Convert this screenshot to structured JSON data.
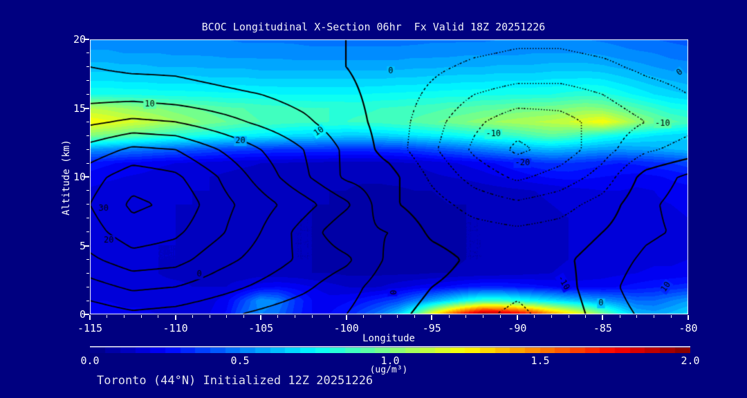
{
  "title": "BCOC Longitudinal X-Section 06hr  Fx Valid 18Z 20251226",
  "footer": "Toronto (44°N) Initialized 12Z 20251226",
  "colors": {
    "background": "#000080",
    "text": "#f0f0f8",
    "axis": "#ffffff",
    "contour_line": "#000000"
  },
  "axes": {
    "x": {
      "label": "Longitude",
      "min": -115,
      "max": -80,
      "major_ticks": [
        -115,
        -110,
        -105,
        -100,
        -95,
        -90,
        -85,
        -80
      ],
      "minor_step": 1
    },
    "y": {
      "label": "Altitude (km)",
      "min": 0,
      "max": 20,
      "major_ticks": [
        0,
        5,
        10,
        15,
        20
      ],
      "minor_step": 1
    }
  },
  "colorbar": {
    "min": 0.0,
    "max": 2.0,
    "tick_labels": [
      "0.0",
      "0.5",
      "1.0",
      "1.5",
      "2.0"
    ],
    "units": "(ug/m³)",
    "palette": "jet"
  },
  "chart_data": {
    "type": "heatmap",
    "title": "BCOC Longitudinal X-Section 06hr  Fx Valid 18Z 20251226",
    "xlabel": "Longitude",
    "ylabel": "Altitude (km)",
    "x_range": [
      -115,
      -80
    ],
    "y_range": [
      0,
      20
    ],
    "fill_levels_step": 0.05,
    "fill_field": {
      "name": "BCOC concentration (ug/m3), shaded jet 0.0-2.0",
      "lon_min": -115,
      "lon_step": 1,
      "alt_min": 0,
      "alt_step": 1,
      "rows": [
        [
          0.22,
          0.22,
          0.21,
          0.21,
          0.2,
          0.2,
          0.2,
          0.2,
          0.26,
          0.45,
          0.5,
          0.45,
          0.33,
          0.25,
          0.25,
          0.3,
          0.4,
          0.5,
          0.65,
          0.9,
          1.25,
          1.55,
          1.8,
          2.0,
          1.95,
          1.85,
          1.7,
          1.5,
          1.35,
          1.2,
          1.0,
          0.8,
          0.62,
          0.58,
          0.62,
          0.68
        ],
        [
          0.2,
          0.2,
          0.19,
          0.19,
          0.18,
          0.18,
          0.18,
          0.18,
          0.23,
          0.38,
          0.55,
          0.5,
          0.35,
          0.25,
          0.22,
          0.24,
          0.28,
          0.33,
          0.38,
          0.48,
          0.58,
          0.68,
          0.78,
          0.85,
          0.85,
          0.8,
          0.75,
          0.7,
          0.65,
          0.6,
          0.55,
          0.5,
          0.45,
          0.45,
          0.5,
          0.55
        ],
        [
          0.18,
          0.18,
          0.17,
          0.17,
          0.16,
          0.16,
          0.15,
          0.15,
          0.15,
          0.18,
          0.23,
          0.25,
          0.23,
          0.2,
          0.17,
          0.15,
          0.14,
          0.15,
          0.18,
          0.21,
          0.23,
          0.26,
          0.29,
          0.31,
          0.31,
          0.29,
          0.27,
          0.25,
          0.23,
          0.23,
          0.23,
          0.25,
          0.27,
          0.29,
          0.31,
          0.33
        ],
        [
          0.17,
          0.16,
          0.16,
          0.15,
          0.15,
          0.14,
          0.14,
          0.13,
          0.13,
          0.12,
          0.12,
          0.11,
          0.11,
          0.1,
          0.1,
          0.09,
          0.09,
          0.09,
          0.09,
          0.09,
          0.1,
          0.1,
          0.11,
          0.11,
          0.12,
          0.13,
          0.14,
          0.15,
          0.16,
          0.17,
          0.18,
          0.19,
          0.2,
          0.21,
          0.21,
          0.22
        ],
        [
          0.17,
          0.17,
          0.16,
          0.16,
          0.15,
          0.15,
          0.14,
          0.13,
          0.13,
          0.12,
          0.11,
          0.11,
          0.1,
          0.1,
          0.09,
          0.09,
          0.08,
          0.08,
          0.08,
          0.08,
          0.09,
          0.09,
          0.1,
          0.1,
          0.11,
          0.12,
          0.13,
          0.14,
          0.15,
          0.16,
          0.17,
          0.18,
          0.18,
          0.19,
          0.19,
          0.2
        ],
        [
          0.17,
          0.17,
          0.16,
          0.16,
          0.15,
          0.15,
          0.14,
          0.13,
          0.13,
          0.12,
          0.11,
          0.11,
          0.1,
          0.1,
          0.09,
          0.09,
          0.08,
          0.08,
          0.08,
          0.08,
          0.09,
          0.09,
          0.1,
          0.1,
          0.11,
          0.12,
          0.13,
          0.14,
          0.15,
          0.16,
          0.17,
          0.18,
          0.18,
          0.19,
          0.19,
          0.2
        ],
        [
          0.18,
          0.17,
          0.17,
          0.16,
          0.16,
          0.15,
          0.14,
          0.14,
          0.13,
          0.12,
          0.12,
          0.11,
          0.1,
          0.1,
          0.09,
          0.09,
          0.08,
          0.08,
          0.08,
          0.08,
          0.09,
          0.09,
          0.1,
          0.1,
          0.11,
          0.12,
          0.13,
          0.14,
          0.15,
          0.17,
          0.18,
          0.18,
          0.18,
          0.18,
          0.19,
          0.2
        ],
        [
          0.18,
          0.17,
          0.17,
          0.16,
          0.16,
          0.15,
          0.14,
          0.14,
          0.13,
          0.12,
          0.12,
          0.11,
          0.1,
          0.1,
          0.09,
          0.09,
          0.08,
          0.08,
          0.08,
          0.08,
          0.09,
          0.09,
          0.1,
          0.1,
          0.11,
          0.12,
          0.13,
          0.14,
          0.15,
          0.17,
          0.18,
          0.18,
          0.18,
          0.18,
          0.19,
          0.2
        ],
        [
          0.18,
          0.18,
          0.17,
          0.17,
          0.16,
          0.15,
          0.15,
          0.14,
          0.13,
          0.13,
          0.12,
          0.11,
          0.11,
          0.1,
          0.1,
          0.09,
          0.09,
          0.08,
          0.08,
          0.09,
          0.09,
          0.1,
          0.1,
          0.11,
          0.12,
          0.13,
          0.14,
          0.15,
          0.16,
          0.18,
          0.19,
          0.19,
          0.18,
          0.19,
          0.2,
          0.21
        ],
        [
          0.19,
          0.18,
          0.18,
          0.17,
          0.17,
          0.16,
          0.15,
          0.15,
          0.14,
          0.13,
          0.13,
          0.12,
          0.11,
          0.11,
          0.1,
          0.1,
          0.09,
          0.09,
          0.09,
          0.1,
          0.1,
          0.11,
          0.11,
          0.12,
          0.13,
          0.14,
          0.15,
          0.16,
          0.18,
          0.19,
          0.2,
          0.2,
          0.19,
          0.2,
          0.22,
          0.23
        ],
        [
          0.23,
          0.21,
          0.2,
          0.19,
          0.18,
          0.17,
          0.16,
          0.15,
          0.14,
          0.13,
          0.13,
          0.12,
          0.12,
          0.11,
          0.11,
          0.11,
          0.11,
          0.11,
          0.12,
          0.13,
          0.14,
          0.15,
          0.16,
          0.18,
          0.2,
          0.22,
          0.24,
          0.26,
          0.27,
          0.26,
          0.25,
          0.24,
          0.23,
          0.24,
          0.26,
          0.28
        ],
        [
          0.28,
          0.26,
          0.24,
          0.23,
          0.21,
          0.2,
          0.19,
          0.18,
          0.17,
          0.16,
          0.15,
          0.15,
          0.14,
          0.14,
          0.13,
          0.13,
          0.13,
          0.13,
          0.14,
          0.15,
          0.17,
          0.19,
          0.21,
          0.23,
          0.26,
          0.29,
          0.33,
          0.35,
          0.35,
          0.33,
          0.31,
          0.3,
          0.31,
          0.33,
          0.35,
          0.38
        ],
        [
          0.55,
          0.53,
          0.5,
          0.48,
          0.46,
          0.44,
          0.42,
          0.4,
          0.38,
          0.37,
          0.36,
          0.35,
          0.35,
          0.34,
          0.34,
          0.33,
          0.33,
          0.34,
          0.35,
          0.37,
          0.4,
          0.43,
          0.46,
          0.5,
          0.53,
          0.56,
          0.6,
          0.62,
          0.6,
          0.58,
          0.56,
          0.55,
          0.56,
          0.58,
          0.6,
          0.62
        ],
        [
          1.0,
          0.97,
          0.94,
          0.9,
          0.86,
          0.82,
          0.8,
          0.78,
          0.76,
          0.74,
          0.72,
          0.7,
          0.68,
          0.67,
          0.66,
          0.65,
          0.65,
          0.66,
          0.68,
          0.7,
          0.72,
          0.74,
          0.77,
          0.8,
          0.83,
          0.86,
          0.9,
          0.93,
          0.9,
          0.85,
          0.8,
          0.76,
          0.73,
          0.7,
          0.68,
          0.66
        ],
        [
          1.25,
          1.22,
          1.18,
          1.15,
          1.1,
          1.06,
          1.02,
          0.98,
          0.95,
          0.92,
          0.9,
          0.88,
          0.87,
          0.86,
          0.85,
          0.85,
          0.86,
          0.87,
          0.89,
          0.91,
          0.94,
          0.97,
          1.0,
          1.03,
          1.06,
          1.08,
          1.1,
          1.12,
          1.15,
          1.2,
          1.25,
          1.15,
          1.05,
          0.98,
          0.92,
          0.88
        ],
        [
          1.1,
          1.08,
          1.05,
          1.02,
          1.0,
          0.97,
          0.95,
          0.93,
          0.91,
          0.9,
          0.88,
          0.87,
          0.86,
          0.85,
          0.85,
          0.84,
          0.84,
          0.85,
          0.86,
          0.87,
          0.88,
          0.9,
          0.91,
          0.93,
          0.94,
          0.96,
          0.97,
          0.98,
          1.0,
          1.02,
          1.0,
          0.95,
          0.9,
          0.85,
          0.8,
          0.78
        ],
        [
          0.8,
          0.8,
          0.79,
          0.79,
          0.78,
          0.78,
          0.77,
          0.77,
          0.76,
          0.76,
          0.76,
          0.75,
          0.75,
          0.75,
          0.75,
          0.75,
          0.75,
          0.76,
          0.76,
          0.77,
          0.77,
          0.78,
          0.78,
          0.79,
          0.79,
          0.8,
          0.8,
          0.8,
          0.82,
          0.83,
          0.82,
          0.78,
          0.74,
          0.7,
          0.67,
          0.65
        ],
        [
          0.7,
          0.7,
          0.69,
          0.69,
          0.68,
          0.68,
          0.68,
          0.67,
          0.67,
          0.67,
          0.66,
          0.66,
          0.66,
          0.66,
          0.66,
          0.66,
          0.66,
          0.66,
          0.67,
          0.67,
          0.68,
          0.68,
          0.69,
          0.69,
          0.7,
          0.7,
          0.7,
          0.71,
          0.71,
          0.72,
          0.71,
          0.68,
          0.65,
          0.62,
          0.6,
          0.58
        ],
        [
          0.62,
          0.62,
          0.61,
          0.61,
          0.6,
          0.6,
          0.6,
          0.59,
          0.59,
          0.59,
          0.58,
          0.58,
          0.58,
          0.58,
          0.58,
          0.58,
          0.58,
          0.58,
          0.58,
          0.59,
          0.59,
          0.6,
          0.6,
          0.6,
          0.61,
          0.61,
          0.61,
          0.62,
          0.62,
          0.62,
          0.61,
          0.59,
          0.57,
          0.55,
          0.53,
          0.52
        ],
        [
          0.56,
          0.56,
          0.55,
          0.55,
          0.55,
          0.54,
          0.54,
          0.54,
          0.53,
          0.53,
          0.53,
          0.53,
          0.52,
          0.52,
          0.52,
          0.52,
          0.52,
          0.52,
          0.52,
          0.53,
          0.53,
          0.53,
          0.54,
          0.54,
          0.54,
          0.54,
          0.55,
          0.55,
          0.55,
          0.55,
          0.54,
          0.52,
          0.51,
          0.5,
          0.48,
          0.47
        ],
        [
          0.52,
          0.52,
          0.51,
          0.51,
          0.51,
          0.5,
          0.5,
          0.5,
          0.5,
          0.49,
          0.49,
          0.49,
          0.49,
          0.48,
          0.48,
          0.48,
          0.48,
          0.48,
          0.48,
          0.48,
          0.49,
          0.49,
          0.49,
          0.49,
          0.5,
          0.5,
          0.5,
          0.5,
          0.5,
          0.5,
          0.49,
          0.48,
          0.46,
          0.45,
          0.44,
          0.43
        ]
      ]
    },
    "line_field": {
      "name": "overlaid contour field (solid >= 0, dotted < 0), interval 5",
      "levels": [
        -25,
        -20,
        -15,
        -10,
        -5,
        0,
        5,
        10,
        15,
        20,
        25,
        30,
        35
      ],
      "lon_min": -115,
      "lon_step": 2.5,
      "alt_min": 0,
      "alt_step": 2,
      "rows": [
        [
          12,
          14,
          13,
          11,
          9,
          7,
          5,
          1,
          -1,
          -4,
          -6,
          -3,
          2,
          6,
          8
        ],
        [
          18,
          21,
          20,
          17,
          14,
          11,
          7,
          2,
          0,
          -2,
          -4,
          -2,
          3,
          8,
          10
        ],
        [
          24,
          28,
          27,
          22,
          18,
          14,
          11,
          4,
          2,
          -1,
          -2,
          -1,
          2,
          6,
          8
        ],
        [
          28,
          33,
          31,
          26,
          20,
          13,
          6,
          5,
          -1,
          -3,
          -4,
          -3,
          0,
          4,
          6
        ],
        [
          30,
          36,
          34,
          27,
          22,
          17,
          11,
          1,
          -3,
          -7,
          -9,
          -7,
          -3,
          4,
          7
        ],
        [
          28,
          33,
          31,
          25,
          18,
          11,
          4,
          2,
          -6,
          -12,
          -16,
          -13,
          -8,
          2,
          6
        ],
        [
          22,
          26,
          25,
          20,
          15,
          10,
          4,
          -2,
          -9,
          -16,
          -21,
          -18,
          -12,
          -6,
          -3
        ],
        [
          14,
          16,
          15,
          12,
          9,
          6,
          2,
          -2,
          -8,
          -14,
          -18,
          -17,
          -13,
          -10,
          -7
        ],
        [
          8,
          8,
          7,
          6,
          5,
          3,
          1,
          -2,
          -6,
          -10,
          -12,
          -12,
          -10,
          -7,
          -5
        ],
        [
          5,
          4,
          4,
          3,
          2,
          1,
          0,
          -2,
          -4,
          -6,
          -7,
          -7,
          -6,
          -4,
          -3
        ],
        [
          3,
          2,
          2,
          1,
          1,
          0.5,
          0,
          -1,
          -2,
          -3,
          -4,
          -4,
          -3,
          -2,
          -2
        ]
      ]
    },
    "contour_labels": [
      {
        "text": "10",
        "lon": -111.5,
        "alt": 15.3,
        "rot": 0
      },
      {
        "text": "20",
        "lon": -106.2,
        "alt": 12.6,
        "rot": 0
      },
      {
        "text": "10",
        "lon": -101.6,
        "alt": 13.3,
        "rot": -35
      },
      {
        "text": "30",
        "lon": -114.2,
        "alt": 7.7,
        "rot": 0
      },
      {
        "text": "20",
        "lon": -113.9,
        "alt": 5.4,
        "rot": 0
      },
      {
        "text": "0",
        "lon": -108.6,
        "alt": 2.9,
        "rot": 0
      },
      {
        "text": "0",
        "lon": -97.4,
        "alt": 17.7,
        "rot": 0
      },
      {
        "text": "-10",
        "lon": -91.4,
        "alt": 13.1,
        "rot": 0
      },
      {
        "text": "-20",
        "lon": -89.7,
        "alt": 11.0,
        "rot": 0
      },
      {
        "text": "-10",
        "lon": -81.5,
        "alt": 13.9,
        "rot": 0
      },
      {
        "text": "0",
        "lon": -80.5,
        "alt": 17.6,
        "rot": -40
      },
      {
        "text": "0",
        "lon": -97.3,
        "alt": 1.6,
        "rot": 90
      },
      {
        "text": "-10",
        "lon": -87.3,
        "alt": 2.3,
        "rot": 60
      },
      {
        "text": "0",
        "lon": -85.1,
        "alt": 0.8,
        "rot": 0
      },
      {
        "text": "10",
        "lon": -81.3,
        "alt": 2.0,
        "rot": -55
      }
    ]
  }
}
